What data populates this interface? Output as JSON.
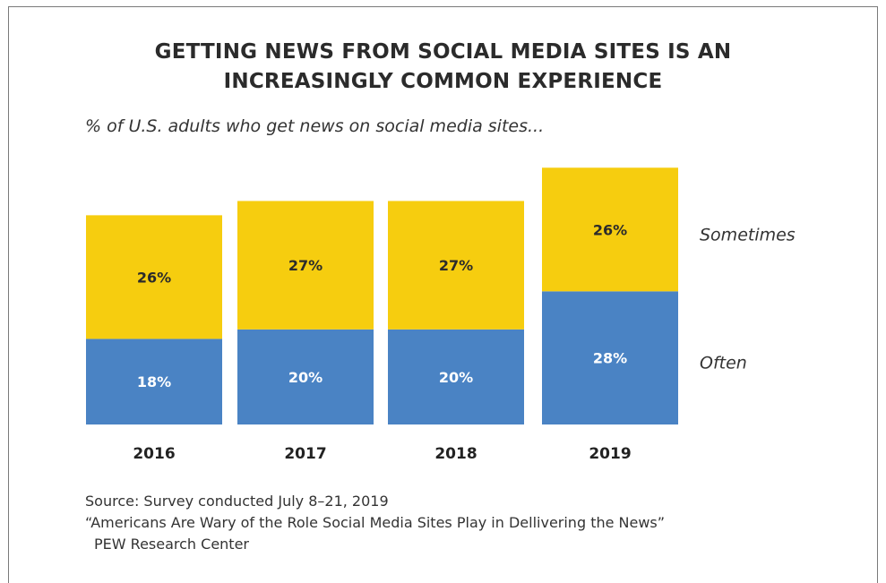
{
  "title_lines": [
    "GETTING NEWS FROM SOCIAL MEDIA SITES IS AN",
    "INCREASINGLY COMMON EXPERIENCE"
  ],
  "subtitle": "% of U.S. adults who get news on social media sites...",
  "colors": {
    "often": "#4a83c4",
    "sometimes": "#f6cd0f",
    "often_label": "#ffffff",
    "sometimes_label": "#2b2b2b"
  },
  "chart_data": {
    "type": "bar",
    "stacked": true,
    "categories": [
      "2016",
      "2017",
      "2018",
      "2019"
    ],
    "series": [
      {
        "name": "Often",
        "values": [
          18,
          20,
          20,
          28
        ],
        "labels": [
          "18%",
          "20%",
          "20%",
          "28%"
        ]
      },
      {
        "name": "Sometimes",
        "values": [
          26,
          27,
          27,
          26
        ],
        "labels": [
          "26%",
          "27%",
          "27%",
          "26%"
        ]
      }
    ],
    "legend_position": "right",
    "grid": false
  },
  "source": {
    "line1": "Source: Survey conducted July 8–21, 2019",
    "line2": "“Americans Are Wary of the Role Social Media Sites Play in Dellivering the News”",
    "line3": "PEW Research Center"
  }
}
